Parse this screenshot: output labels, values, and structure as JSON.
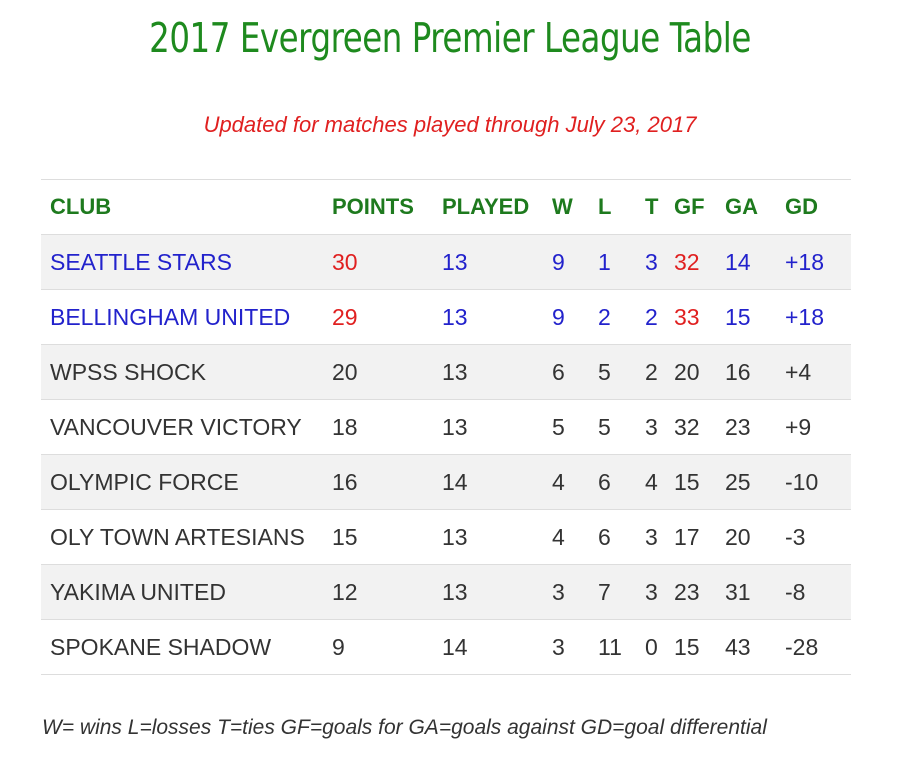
{
  "title": "2017 Evergreen Premier League Table",
  "subtitle": "Updated for matches played through July 23, 2017",
  "colors": {
    "title_green": "#1e8a1e",
    "header_green": "#1e7a1e",
    "subtitle_red": "#e02020",
    "highlight_blue": "#2222cc",
    "highlight_red": "#e02020",
    "text": "#333333",
    "row_stripe": "#f2f2f2"
  },
  "table": {
    "headers": [
      "CLUB",
      "POINTS",
      "PLAYED",
      "W",
      "L",
      "T",
      "GF",
      "GA",
      "GD"
    ],
    "rows": [
      {
        "club": "SEATTLE STARS",
        "points": "30",
        "played": "13",
        "w": "9",
        "l": "1",
        "t": "3",
        "gf": "32",
        "ga": "14",
        "gd": "+18"
      },
      {
        "club": "BELLINGHAM UNITED",
        "points": "29",
        "played": "13",
        "w": "9",
        "l": "2",
        "t": "2",
        "gf": "33",
        "ga": "15",
        "gd": "+18"
      },
      {
        "club": "WPSS SHOCK",
        "points": "20",
        "played": "13",
        "w": "6",
        "l": "5",
        "t": "2",
        "gf": "20",
        "ga": "16",
        "gd": "+4"
      },
      {
        "club": "VANCOUVER VICTORY",
        "points": "18",
        "played": "13",
        "w": "5",
        "l": "5",
        "t": "3",
        "gf": "32",
        "ga": "23",
        "gd": "+9"
      },
      {
        "club": "OLYMPIC FORCE",
        "points": "16",
        "played": "14",
        "w": "4",
        "l": "6",
        "t": "4",
        "gf": "15",
        "ga": "25",
        "gd": "-10"
      },
      {
        "club": "OLY TOWN ARTESIANS",
        "points": "15",
        "played": "13",
        "w": "4",
        "l": "6",
        "t": "3",
        "gf": "17",
        "ga": "20",
        "gd": "-3"
      },
      {
        "club": "YAKIMA UNITED",
        "points": "12",
        "played": "13",
        "w": "3",
        "l": "7",
        "t": "3",
        "gf": "23",
        "ga": "31",
        "gd": "-8"
      },
      {
        "club": "SPOKANE SHADOW",
        "points": "9",
        "played": "14",
        "w": "3",
        "l": "11",
        "t": "0",
        "gf": "15",
        "ga": "43",
        "gd": "-28"
      }
    ]
  },
  "legend": "W= wins L=losses T=ties GF=goals for GA=goals against GD=goal differential"
}
